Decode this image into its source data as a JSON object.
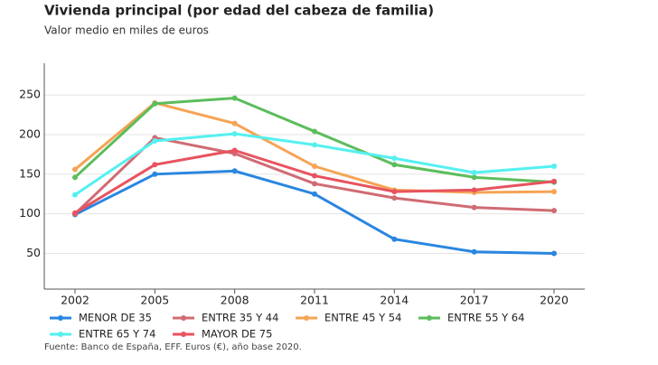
{
  "chart_data": {
    "type": "line",
    "title": "Vivienda principal (por edad del cabeza de familia)",
    "subtitle": "Valor medio en miles de euros",
    "source": "Fuente: Banco de España, EFF. Euros (€), año base 2020.",
    "categories": [
      "2002",
      "2005",
      "2008",
      "2011",
      "2014",
      "2017",
      "2020"
    ],
    "ylim": [
      5,
      290
    ],
    "yticks": [
      50,
      100,
      150,
      200,
      250
    ],
    "grid": true,
    "series": [
      {
        "name": "MENOR DE 35",
        "color": "#2a86e0",
        "values": [
          99,
          150,
          154,
          125,
          68,
          52,
          50
        ]
      },
      {
        "name": "ENTRE 35 Y 44",
        "color": "#d06b73",
        "values": [
          100,
          196,
          176,
          138,
          120,
          108,
          104
        ]
      },
      {
        "name": "ENTRE 45 Y 54",
        "color": "#f5a455",
        "values": [
          156,
          240,
          214,
          160,
          130,
          127,
          128
        ]
      },
      {
        "name": "ENTRE 55 Y 64",
        "color": "#5cbd5c",
        "values": [
          146,
          239,
          246,
          204,
          162,
          146,
          140
        ]
      },
      {
        "name": "ENTRE 65 Y 74",
        "color": "#55f0f0",
        "values": [
          124,
          192,
          201,
          187,
          170,
          152,
          160
        ]
      },
      {
        "name": "MAYOR DE 75",
        "color": "#e8535f",
        "values": [
          101,
          162,
          180,
          148,
          128,
          130,
          141
        ]
      }
    ]
  }
}
